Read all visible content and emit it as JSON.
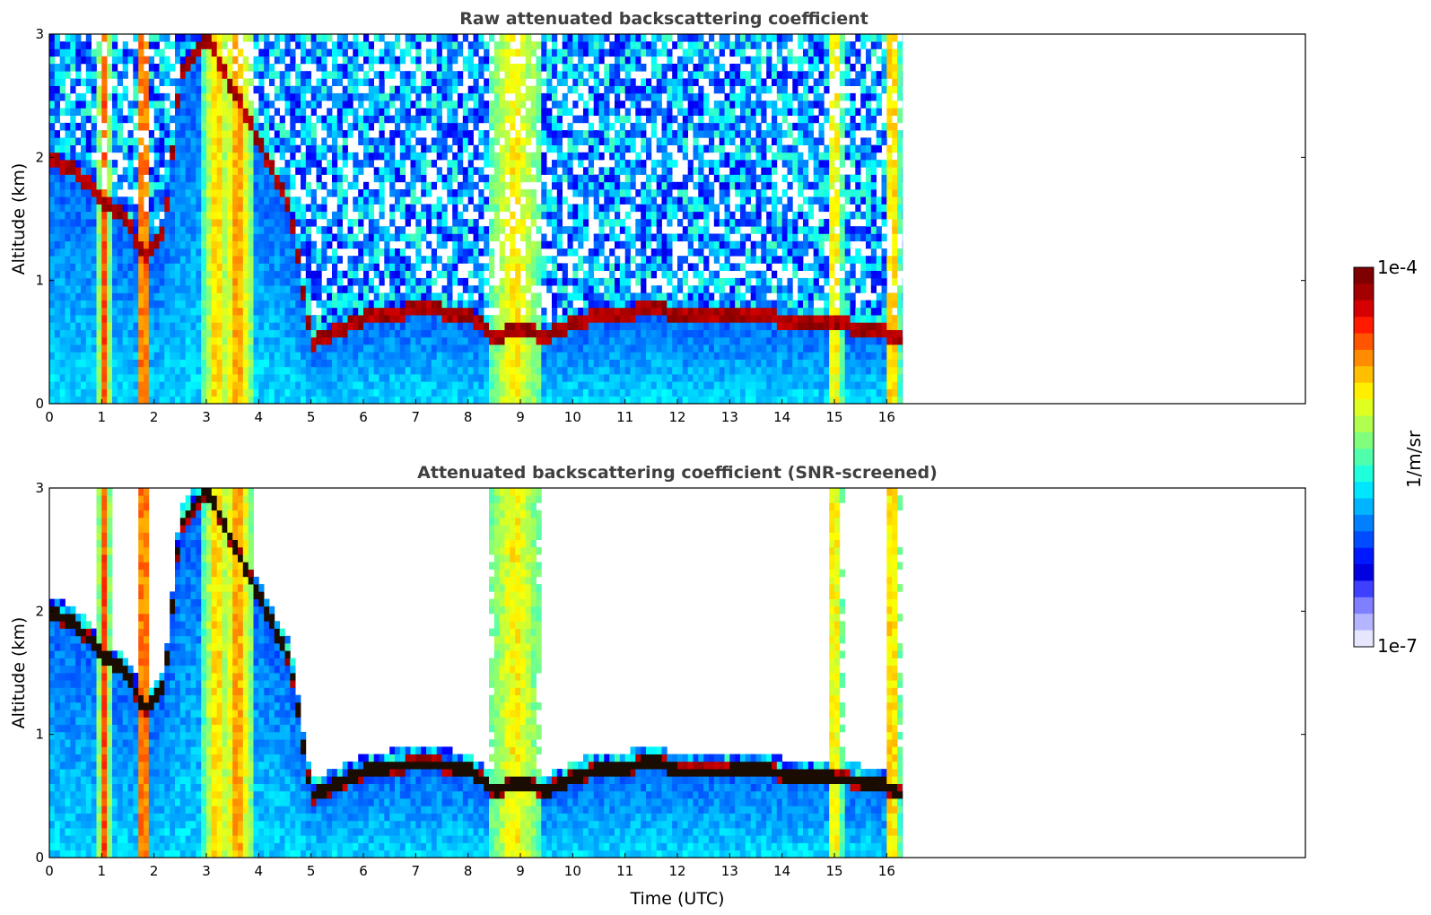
{
  "chart_data": [
    {
      "type": "heatmap",
      "title": "Raw attenuated backscattering coefficient",
      "xlabel": "",
      "ylabel": "Altitude (km)",
      "xlim": [
        0,
        24
      ],
      "ylim": [
        0,
        3
      ],
      "x_ticks": [
        "0",
        "1",
        "2",
        "3",
        "4",
        "5",
        "6",
        "7",
        "8",
        "9",
        "10",
        "11",
        "12",
        "13",
        "14",
        "15",
        "16"
      ],
      "y_ticks": [
        "0",
        "1",
        "2",
        "3"
      ],
      "data_end_hour": 16.3,
      "boundary_layer_top_km": [
        [
          0,
          2.0
        ],
        [
          0.5,
          1.9
        ],
        [
          1.0,
          1.65
        ],
        [
          1.5,
          1.5
        ],
        [
          1.8,
          1.2
        ],
        [
          2.2,
          1.4
        ],
        [
          2.5,
          2.7
        ],
        [
          3.0,
          3.0
        ],
        [
          4.6,
          1.6
        ],
        [
          5.0,
          0.5
        ],
        [
          5.5,
          0.6
        ],
        [
          6.0,
          0.7
        ],
        [
          6.5,
          0.74
        ],
        [
          7.0,
          0.76
        ],
        [
          7.5,
          0.75
        ],
        [
          8.0,
          0.72
        ],
        [
          8.5,
          0.55
        ],
        [
          9.0,
          0.6
        ],
        [
          9.5,
          0.55
        ],
        [
          10.0,
          0.65
        ],
        [
          10.5,
          0.72
        ],
        [
          11.0,
          0.72
        ],
        [
          11.5,
          0.8
        ],
        [
          12.0,
          0.7
        ],
        [
          12.5,
          0.7
        ],
        [
          13.0,
          0.7
        ],
        [
          13.5,
          0.72
        ],
        [
          14.0,
          0.68
        ],
        [
          14.5,
          0.66
        ],
        [
          15.0,
          0.64
        ],
        [
          15.5,
          0.62
        ],
        [
          16.0,
          0.58
        ],
        [
          16.3,
          0.5
        ]
      ],
      "colormap": "jet",
      "colorbar_range": [
        "1e-7",
        "1e-4"
      ],
      "colorbar_label": "1/m/sr"
    },
    {
      "type": "heatmap",
      "title": "Attenuated backscattering coefficient (SNR-screened)",
      "xlabel": "Time (UTC)",
      "ylabel": "Altitude (km)",
      "xlim": [
        0,
        24
      ],
      "ylim": [
        0,
        3
      ],
      "x_ticks": [
        "0",
        "1",
        "2",
        "3",
        "4",
        "5",
        "6",
        "7",
        "8",
        "9",
        "10",
        "11",
        "12",
        "13",
        "14",
        "15",
        "16"
      ],
      "y_ticks": [
        "0",
        "1",
        "2",
        "3"
      ],
      "data_end_hour": 16.3,
      "screened": true,
      "colormap": "jet",
      "colorbar_range": [
        "1e-7",
        "1e-4"
      ],
      "colorbar_label": "1/m/sr"
    }
  ],
  "colorbar": {
    "top_label": "1e-4",
    "bottom_label": "1e-7",
    "label": "1/m/sr",
    "colors": [
      "#7f0000",
      "#a50000",
      "#d70000",
      "#ff1a00",
      "#ff5500",
      "#ff8c00",
      "#ffbf00",
      "#ffee00",
      "#dfff20",
      "#b0ff4e",
      "#80ff7d",
      "#50ffac",
      "#20ffdb",
      "#00e6ff",
      "#00b4ff",
      "#0080ff",
      "#004cff",
      "#0018ff",
      "#0000e0",
      "#3f3fff",
      "#7f7fff",
      "#b5b5ff",
      "#e6e6ff"
    ]
  }
}
